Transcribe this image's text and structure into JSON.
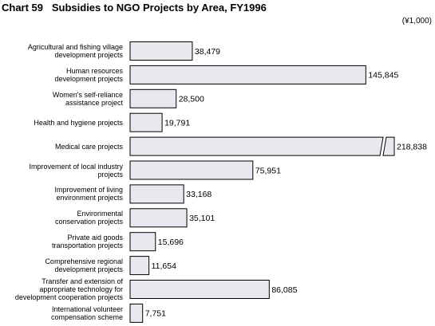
{
  "chart_data": {
    "type": "bar",
    "orientation": "horizontal",
    "title": "Chart 59   Subsidies to NGO Projects by Area, FY1996",
    "unit": "(¥1,000)",
    "categories": [
      "Agricultural and fishing village\ndevelopment projects",
      "Human resources\ndevelopment projects",
      "Women's self-reliance\nassistance project",
      "Health and hygiene projects",
      "Medical care projects",
      "Improvement of local industry\nprojects",
      "Improvement of living\nenvironment projects",
      "Environmental\nconservation projects",
      "Private aid goods\ntransportation projects",
      "Comprehensive regional\ndevelopment projects",
      "Transfer and extension of\nappropriate technology for\ndevelopment cooperation projects",
      "International volunteer\ncompensation scheme"
    ],
    "values": [
      38479,
      145845,
      28500,
      19791,
      218838,
      75951,
      33168,
      35101,
      15696,
      11654,
      86085,
      7751
    ],
    "value_labels": [
      "38,479",
      "145,845",
      "28,500",
      "19,791",
      "218,838",
      "75,951",
      "33,168",
      "35,101",
      "15,696",
      "11,654",
      "86,085",
      "7,751"
    ],
    "color": "#e8e8ee",
    "xlim": [
      0,
      160000
    ],
    "axis_break": true
  }
}
